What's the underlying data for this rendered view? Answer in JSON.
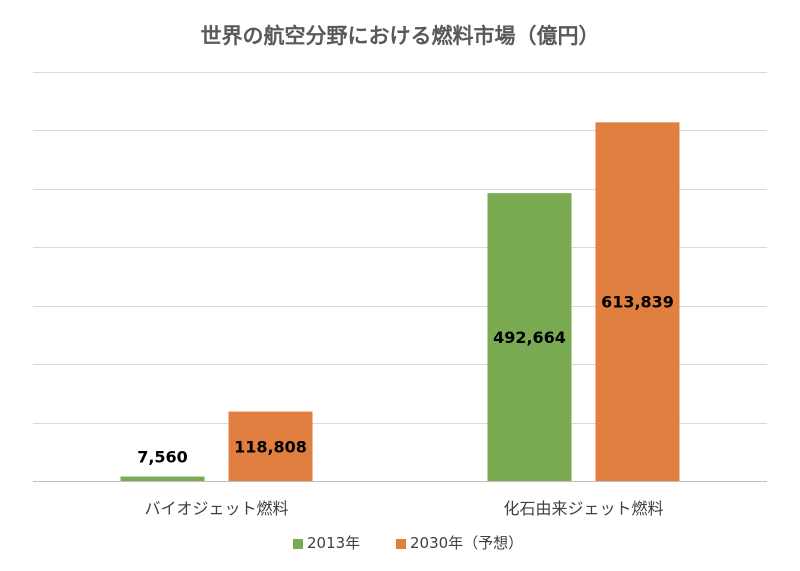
{
  "chart_data": {
    "type": "bar",
    "title": "世界の航空分野における燃料市場（億円）",
    "categories": [
      "バイオジェット燃料",
      "化石由来ジェット燃料"
    ],
    "series": [
      {
        "name": "2013年",
        "values": [
          7560,
          492664
        ],
        "labels": [
          "7,560",
          "492,664"
        ],
        "color": "#7aab53"
      },
      {
        "name": "2030年（予想）",
        "values": [
          118808,
          613839
        ],
        "labels": [
          "118,808",
          "613,839"
        ],
        "color": "#e07f3f"
      }
    ],
    "ylim": [
      0,
      700000
    ],
    "y_gridline_step": 100000,
    "y_tick_labels_shown": false,
    "grid": true,
    "legend": "bottom-center"
  }
}
